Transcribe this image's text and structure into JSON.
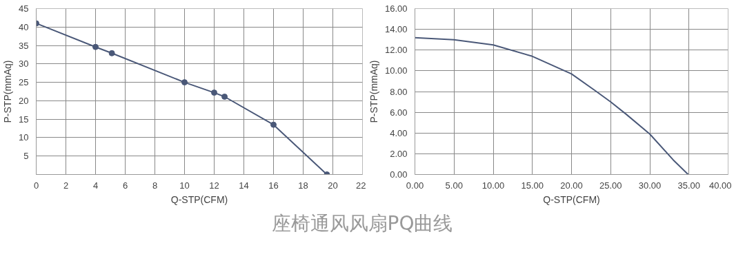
{
  "chart_data": [
    {
      "type": "line",
      "title": "座椅通风风扇PQ曲线",
      "xlabel": "Q-STP(CFM)",
      "ylabel": "P-STP(mmAq)",
      "marker": "circle",
      "grid": true,
      "xlim": [
        0,
        22
      ],
      "xticks": [
        0,
        2,
        4,
        6,
        8,
        10,
        12,
        14,
        16,
        18,
        20,
        22
      ],
      "ylim": [
        0,
        45
      ],
      "yticks": [
        5,
        10,
        15,
        20,
        25,
        30,
        35,
        40,
        45
      ],
      "series": [
        {
          "color": "#4a5878",
          "x": [
            0,
            4,
            5.1,
            10,
            12,
            12.7,
            16,
            19.6
          ],
          "values": [
            41,
            34.6,
            32.9,
            25,
            22.2,
            21.1,
            13.5,
            0
          ]
        }
      ]
    },
    {
      "type": "line",
      "xlabel": "Q-STP(CFM)",
      "ylabel": "P-STP(mmAq)",
      "marker": "none",
      "grid": true,
      "xlim": [
        0,
        40
      ],
      "xticks": [
        {
          "value": 0,
          "label": "0.00"
        },
        {
          "value": 5,
          "label": "5.00"
        },
        {
          "value": 10,
          "label": "10.00"
        },
        {
          "value": 15,
          "label": "15.00"
        },
        {
          "value": 20,
          "label": "20.00"
        },
        {
          "value": 25,
          "label": "25.00"
        },
        {
          "value": 30,
          "label": "30.00"
        },
        {
          "value": 35,
          "label": "35.00"
        },
        {
          "value": 40,
          "label": "40.00"
        }
      ],
      "ylim": [
        0,
        16
      ],
      "yticks": [
        {
          "value": 0,
          "label": "0.00"
        },
        {
          "value": 2,
          "label": "2.00"
        },
        {
          "value": 4,
          "label": "4.00"
        },
        {
          "value": 6,
          "label": "6.00"
        },
        {
          "value": 8,
          "label": "8.00"
        },
        {
          "value": 10,
          "label": "10.00"
        },
        {
          "value": 12,
          "label": "12.00"
        },
        {
          "value": 14,
          "label": "14.00"
        },
        {
          "value": 16,
          "label": "16.00"
        }
      ],
      "series": [
        {
          "color": "#4a5878",
          "x": [
            0,
            5,
            10,
            15,
            20,
            23,
            25,
            27,
            30,
            33,
            34.9
          ],
          "values": [
            13.2,
            13.0,
            12.5,
            11.4,
            9.7,
            8.1,
            7.0,
            5.8,
            3.9,
            1.4,
            0
          ]
        }
      ]
    }
  ]
}
